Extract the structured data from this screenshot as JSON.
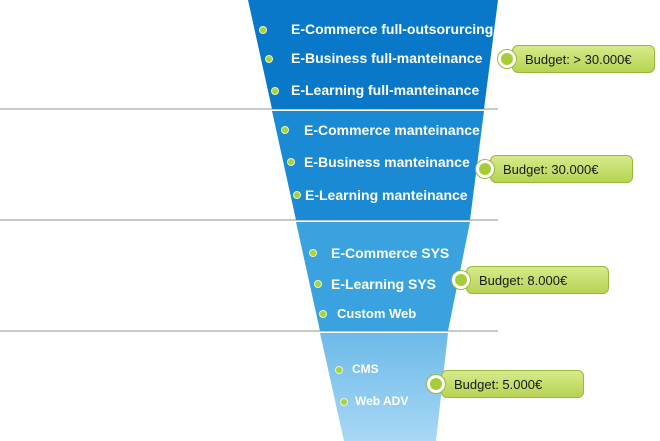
{
  "stages": [
    {
      "items": [
        "E-Commerce full-outsorurcing",
        "E-Business full-manteinance",
        "E-Learning full-manteinance"
      ],
      "budget": "Budget: > 30.000€"
    },
    {
      "items": [
        "E-Commerce manteinance",
        "E-Business manteinance",
        "E-Learning manteinance"
      ],
      "budget": "Budget: 30.000€"
    },
    {
      "items": [
        "E-Commerce SYS",
        "E-Learning SYS",
        "Custom Web"
      ],
      "budget": "Budget: 8.000€"
    },
    {
      "items": [
        "CMS",
        "Web ADV"
      ],
      "budget": "Budget: 5.000€"
    }
  ],
  "colors": {
    "stage1": "#0a78c8",
    "stage2": "#1a8ad4",
    "stage3": "#3aa2de",
    "stage4": "#8ccbef",
    "divider": "#c8c8c8",
    "badge": "#c2dc64",
    "bullet": "#a6d23c"
  }
}
